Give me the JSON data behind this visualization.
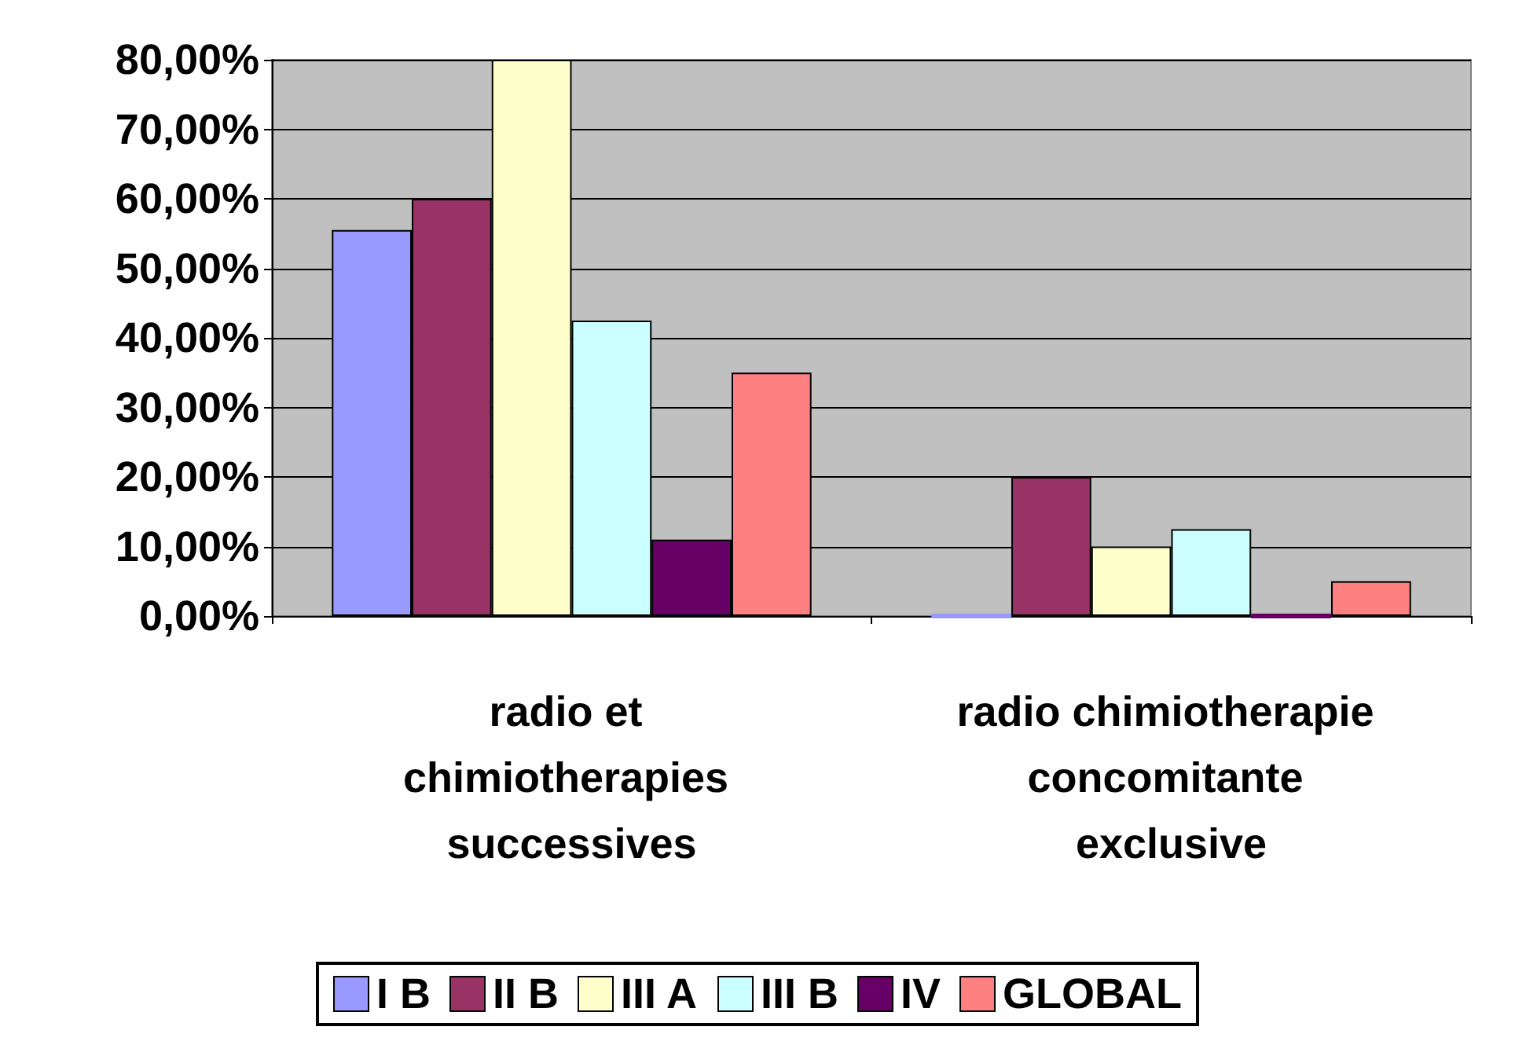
{
  "chart_data": {
    "type": "bar",
    "categories": [
      "radio et chimiotherapies successives",
      "radio chimiotherapie concomitante exclusive"
    ],
    "series": [
      {
        "name": "I B",
        "color": "#9999ff",
        "values": [
          55.5,
          0
        ]
      },
      {
        "name": "II B",
        "color": "#993366",
        "values": [
          60,
          20
        ]
      },
      {
        "name": "III A",
        "color": "#ffffcc",
        "values": [
          80,
          10
        ]
      },
      {
        "name": "III B",
        "color": "#ccffff",
        "values": [
          42.5,
          12.5
        ]
      },
      {
        "name": "IV",
        "color": "#660066",
        "values": [
          11,
          0
        ]
      },
      {
        "name": "GLOBAL",
        "color": "#ff8080",
        "values": [
          35,
          5
        ]
      }
    ],
    "ylim": [
      0,
      80
    ],
    "yticks": [
      {
        "value": 0,
        "label": "0,00%"
      },
      {
        "value": 10,
        "label": "10,00%"
      },
      {
        "value": 20,
        "label": "20,00%"
      },
      {
        "value": 30,
        "label": "30,00%"
      },
      {
        "value": 40,
        "label": "40,00%"
      },
      {
        "value": 50,
        "label": "50,00%"
      },
      {
        "value": 60,
        "label": "60,00%"
      },
      {
        "value": 70,
        "label": "70,00%"
      },
      {
        "value": 80,
        "label": "80,00%"
      }
    ],
    "grid": "y",
    "legend": "bottom"
  }
}
